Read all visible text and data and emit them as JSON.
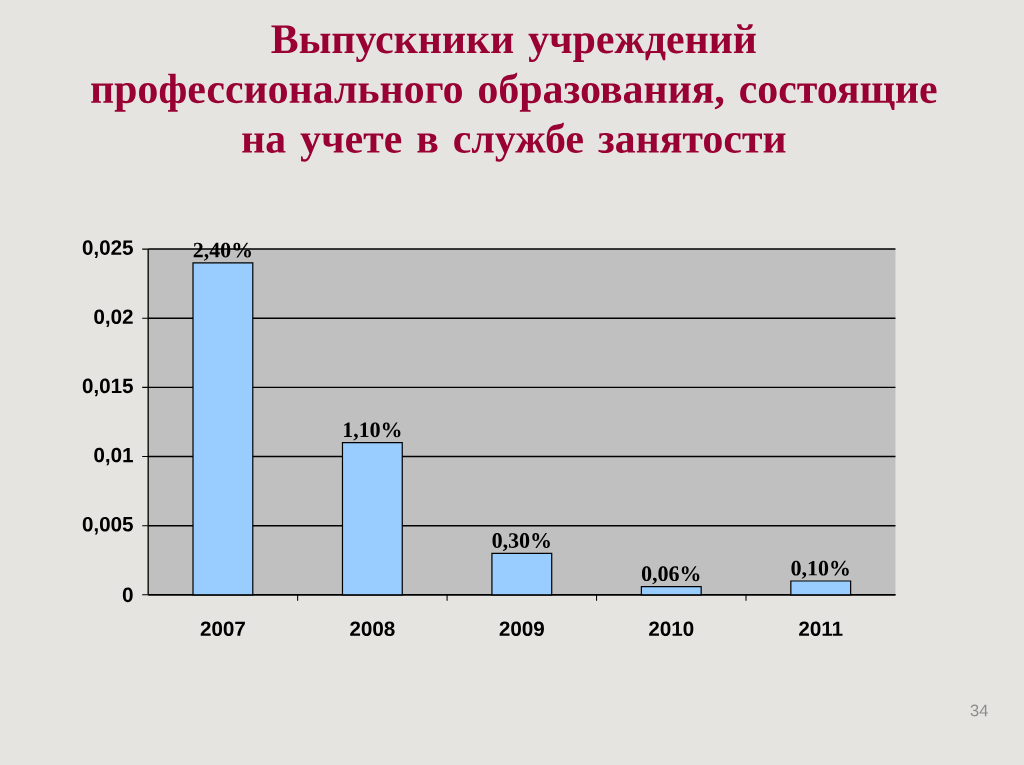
{
  "chart_data": {
    "type": "bar",
    "title": "Выпускники учреждений\nпрофессионального образования, состоящие\nна учете в службе занятости",
    "categories": [
      "2007",
      "2008",
      "2009",
      "2010",
      "2011"
    ],
    "values": [
      0.024,
      0.011,
      0.003,
      0.0006,
      0.001
    ],
    "value_labels": [
      "2,40%",
      "1,10%",
      "0,30%",
      "0,06%",
      "0,10%"
    ],
    "color": "#99ccff",
    "ylim": [
      0,
      0.025
    ],
    "yticks": [
      0,
      {
        "value": 0.005,
        "label": "0,005"
      },
      {
        "value": 0.01,
        "label": "0,01"
      },
      {
        "value": 0.015,
        "label": "0,015"
      },
      {
        "value": 0.02,
        "label": "0,02"
      },
      {
        "value": 0.025,
        "label": "0,025"
      }
    ],
    "grid": "y",
    "annotations": [
      "34"
    ]
  }
}
